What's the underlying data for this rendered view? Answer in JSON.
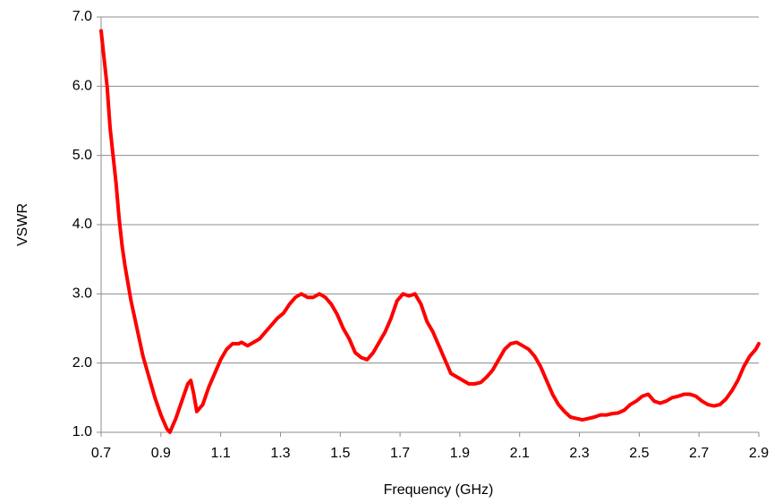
{
  "chart_data": {
    "type": "line",
    "x_label": "Frequency (GHz)",
    "y_label": "VSWR",
    "color": "#ff0000",
    "grid": true,
    "xlim": [
      0.7,
      2.9
    ],
    "xticks": [
      0.7,
      0.9,
      1.1,
      1.3,
      1.5,
      1.7,
      1.9,
      2.1,
      2.3,
      2.5,
      2.7,
      2.9
    ],
    "ylim": [
      1,
      7
    ],
    "yticks": [
      {
        "value": 1,
        "label": "1.0"
      },
      {
        "value": 2,
        "label": "2.0"
      },
      {
        "value": 3,
        "label": "3.0"
      },
      {
        "value": 4,
        "label": "4.0"
      },
      {
        "value": 5,
        "label": "5.0"
      },
      {
        "value": 6,
        "label": "6.0"
      },
      {
        "value": 7,
        "label": "7.0"
      }
    ],
    "x": [
      0.7,
      0.71,
      0.72,
      0.73,
      0.74,
      0.75,
      0.76,
      0.77,
      0.78,
      0.8,
      0.82,
      0.84,
      0.86,
      0.88,
      0.9,
      0.92,
      0.93,
      0.95,
      0.97,
      0.99,
      1.0,
      1.01,
      1.02,
      1.04,
      1.06,
      1.08,
      1.1,
      1.12,
      1.14,
      1.16,
      1.17,
      1.19,
      1.21,
      1.23,
      1.25,
      1.27,
      1.29,
      1.31,
      1.33,
      1.35,
      1.37,
      1.39,
      1.41,
      1.43,
      1.45,
      1.47,
      1.49,
      1.51,
      1.53,
      1.55,
      1.57,
      1.59,
      1.61,
      1.63,
      1.65,
      1.67,
      1.69,
      1.71,
      1.73,
      1.75,
      1.77,
      1.79,
      1.81,
      1.83,
      1.85,
      1.87,
      1.89,
      1.91,
      1.93,
      1.95,
      1.97,
      1.99,
      2.01,
      2.03,
      2.05,
      2.07,
      2.09,
      2.11,
      2.13,
      2.15,
      2.17,
      2.19,
      2.21,
      2.23,
      2.25,
      2.27,
      2.29,
      2.31,
      2.33,
      2.35,
      2.37,
      2.39,
      2.41,
      2.43,
      2.45,
      2.47,
      2.49,
      2.51,
      2.53,
      2.55,
      2.57,
      2.59,
      2.61,
      2.63,
      2.65,
      2.67,
      2.69,
      2.71,
      2.73,
      2.75,
      2.77,
      2.79,
      2.81,
      2.83,
      2.85,
      2.87,
      2.89,
      2.9
    ],
    "values": [
      6.8,
      6.4,
      6.0,
      5.4,
      5.0,
      4.6,
      4.1,
      3.7,
      3.4,
      2.9,
      2.5,
      2.1,
      1.8,
      1.5,
      1.25,
      1.05,
      1.0,
      1.2,
      1.45,
      1.7,
      1.75,
      1.55,
      1.3,
      1.4,
      1.65,
      1.85,
      2.05,
      2.2,
      2.28,
      2.28,
      2.3,
      2.25,
      2.3,
      2.35,
      2.45,
      2.55,
      2.65,
      2.72,
      2.85,
      2.95,
      3.0,
      2.95,
      2.95,
      3.0,
      2.95,
      2.85,
      2.7,
      2.5,
      2.35,
      2.15,
      2.08,
      2.05,
      2.15,
      2.3,
      2.45,
      2.65,
      2.9,
      3.0,
      2.97,
      3.0,
      2.85,
      2.6,
      2.45,
      2.25,
      2.05,
      1.85,
      1.8,
      1.75,
      1.7,
      1.7,
      1.72,
      1.8,
      1.9,
      2.05,
      2.2,
      2.28,
      2.3,
      2.25,
      2.2,
      2.1,
      1.95,
      1.75,
      1.55,
      1.4,
      1.3,
      1.22,
      1.2,
      1.18,
      1.2,
      1.22,
      1.25,
      1.25,
      1.27,
      1.28,
      1.32,
      1.4,
      1.45,
      1.52,
      1.55,
      1.45,
      1.42,
      1.45,
      1.5,
      1.52,
      1.55,
      1.55,
      1.52,
      1.45,
      1.4,
      1.38,
      1.4,
      1.48,
      1.6,
      1.75,
      1.95,
      2.1,
      2.2,
      2.28
    ]
  }
}
